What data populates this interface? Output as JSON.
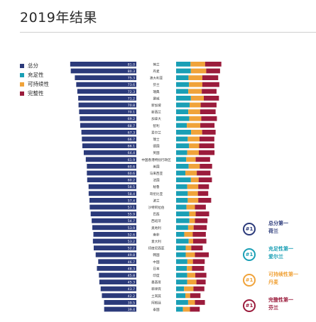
{
  "page": {
    "title": "2019年结果"
  },
  "legend": [
    {
      "label": "总分",
      "color": "#2b3a7a"
    },
    {
      "label": "充足性",
      "color": "#1a9fb5"
    },
    {
      "label": "可持续性",
      "color": "#f0a33a"
    },
    {
      "label": "完整性",
      "color": "#9b1c3c"
    }
  ],
  "callouts": [
    {
      "badge": "#1",
      "title": "总分第一",
      "country": "荷兰",
      "color": "#2b3a7a"
    },
    {
      "badge": "#1",
      "title": "充足性第一",
      "country": "爱尔兰",
      "color": "#1a9fb5"
    },
    {
      "badge": "#1",
      "title": "可持续性第一",
      "country": "丹麦",
      "color": "#f0a33a"
    },
    {
      "badge": "#1",
      "title": "完整性第一",
      "country": "芬兰",
      "color": "#9b1c3c"
    }
  ],
  "chart_data": {
    "type": "bar",
    "categories": [
      "荷兰",
      "丹麦",
      "澳大利亚",
      "芬兰",
      "瑞典",
      "挪威",
      "新加坡",
      "新西兰",
      "加拿大",
      "智利",
      "爱尔兰",
      "瑞士",
      "德国",
      "英国",
      "中国香港特别行政区",
      "美国",
      "马来西亚",
      "法国",
      "秘鲁",
      "哥伦比亚",
      "波兰",
      "沙特阿拉伯",
      "巴西",
      "西班牙",
      "奥地利",
      "南非",
      "意大利",
      "印度尼西亚",
      "韩国",
      "中国",
      "日本",
      "印度",
      "墨西哥",
      "菲律宾",
      "土耳其",
      "阿根廷",
      "泰国"
    ],
    "value_labels": [
      "81.0",
      "80.3",
      "75.3",
      "73.6",
      "72.3",
      "71.2",
      "70.8",
      "70.1",
      "69.2",
      "68.7",
      "67.3",
      "66.7",
      "66.1",
      "64.4",
      "61.9",
      "60.6",
      "60.6",
      "60.2",
      "58.5",
      "58.4",
      "57.4",
      "57.1",
      "55.9",
      "54.7",
      "53.9",
      "52.6",
      "53.2",
      "52.2",
      "49.8",
      "46.7",
      "48.3",
      "45.8",
      "45.3",
      "43.7",
      "42.2",
      "39.5",
      "39.4"
    ],
    "series": [
      {
        "name": "总分",
        "values": [
          81.0,
          80.3,
          75.3,
          73.6,
          72.3,
          71.2,
          70.8,
          70.1,
          69.2,
          68.7,
          67.3,
          66.7,
          66.1,
          64.4,
          61.9,
          60.6,
          60.6,
          60.2,
          58.5,
          58.4,
          57.4,
          57.1,
          55.9,
          54.7,
          53.9,
          52.6,
          53.2,
          52.2,
          49.8,
          46.7,
          48.3,
          45.8,
          45.3,
          43.7,
          42.2,
          39.5,
          39.4
        ]
      },
      {
        "name": "充足性",
        "values": [
          78,
          80,
          67,
          70,
          66,
          80,
          73,
          66,
          71,
          58,
          81,
          63,
          70,
          60,
          55,
          68,
          50,
          80,
          60,
          63,
          63,
          56,
          71,
          72,
          65,
          44,
          68,
          52,
          52,
          61,
          58,
          60,
          60,
          43,
          50,
          65,
          37
        ]
      },
      {
        "name": "可持续性",
        "values": [
          79,
          83,
          75,
          72,
          73,
          70,
          60,
          64,
          65,
          73,
          60,
          64,
          55,
          63,
          51,
          60,
          62,
          42,
          60,
          55,
          57,
          46,
          35,
          30,
          30,
          46,
          24,
          30,
          50,
          30,
          28,
          44,
          50,
          51,
          26,
          37,
          38
        ]
      },
      {
        "name": "完整性",
        "values": [
          88,
          75,
          86,
          92,
          80,
          82,
          86,
          84,
          85,
          77,
          73,
          80,
          82,
          85,
          78,
          67,
          74,
          72,
          58,
          56,
          70,
          59,
          73,
          68,
          71,
          71,
          72,
          62,
          75,
          64,
          66,
          60,
          50,
          59,
          56,
          54,
          53
        ]
      }
    ],
    "colors": [
      "#2b3a7a",
      "#1a9fb5",
      "#f0a33a",
      "#9b1c3c"
    ],
    "legend_position": "top-left",
    "grid": false
  }
}
